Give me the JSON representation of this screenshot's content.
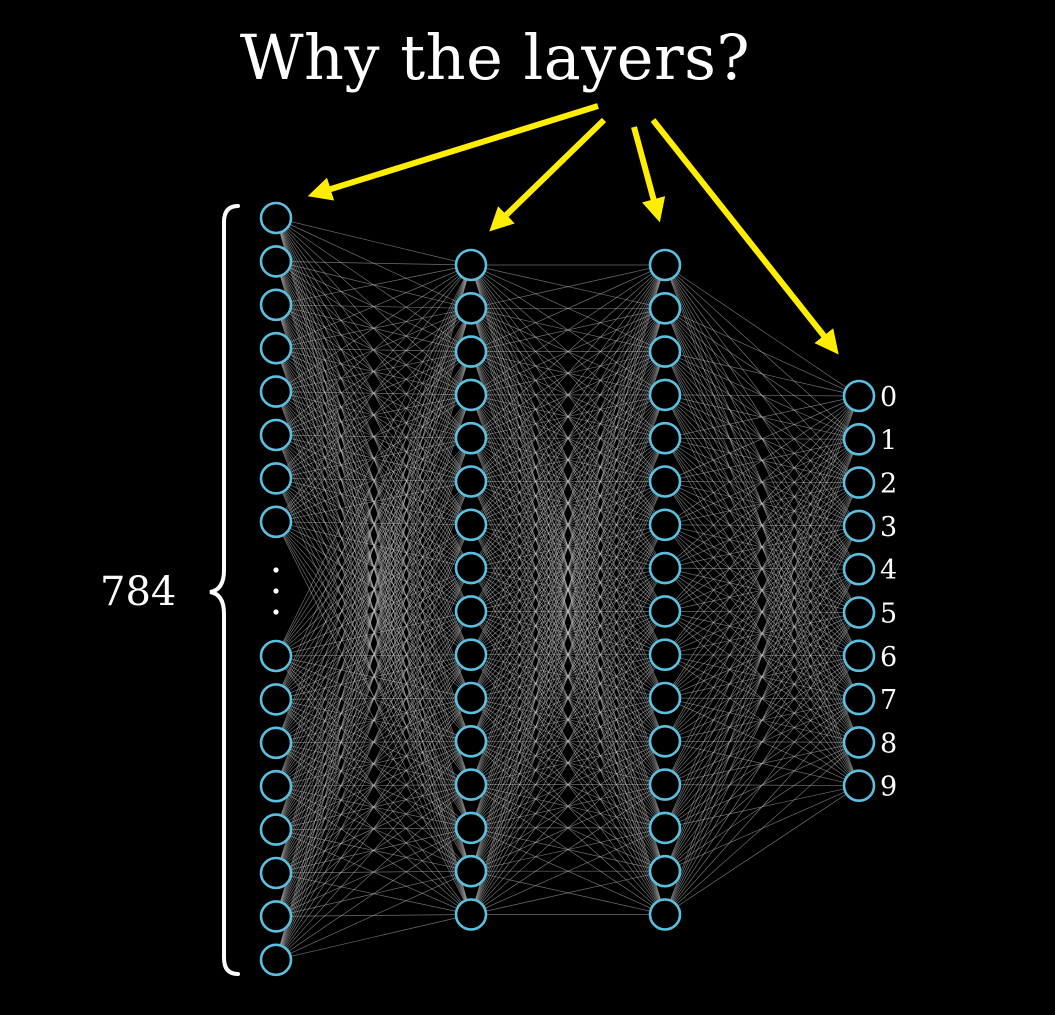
{
  "title": "Why the layers?",
  "input_layer_size_label": "784",
  "output_labels": [
    "0",
    "1",
    "2",
    "3",
    "4",
    "5",
    "6",
    "7",
    "8",
    "9"
  ],
  "colors": {
    "background": "#000000",
    "neuron_stroke": "#5bbfe0",
    "connection": "#c8c8c8",
    "arrow": "#ffee00",
    "text": "#ffffff"
  }
}
